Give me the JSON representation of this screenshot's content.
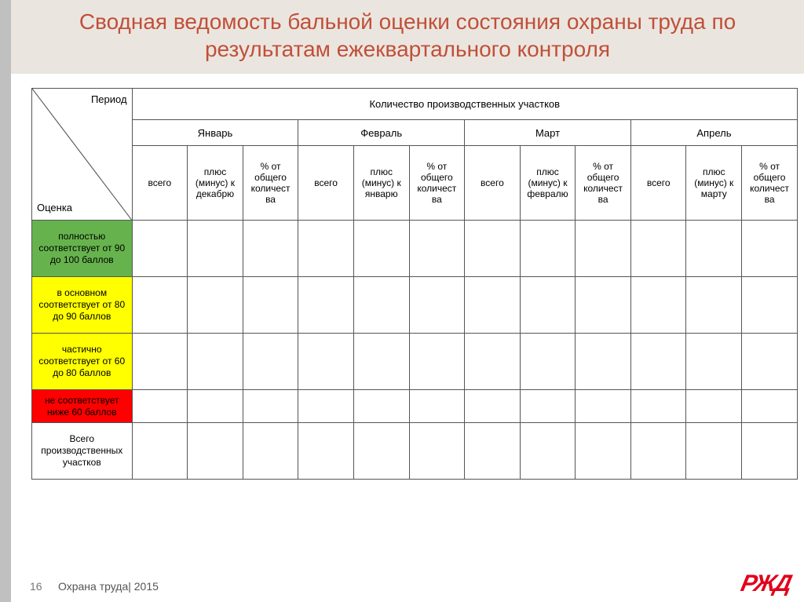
{
  "colors": {
    "title_bg": "#eae6df",
    "title_text": "#c14f3a",
    "side_stripe": "#c0c0c0",
    "border": "#555555",
    "row_full": "#66b34d",
    "row_mostly": "#ffff00",
    "row_partial": "#ffff00",
    "row_noncomp": "#ff0000",
    "logo": "#e2001a",
    "footer_text": "#555555",
    "pagenum": "#777777"
  },
  "title": "Сводная ведомость бальной оценки состояния охраны труда по результатам ежеквартального контроля",
  "table": {
    "diag_top": "Период",
    "diag_bot": "Оценка",
    "super_header": "Количество производственных участков",
    "months": [
      "Январь",
      "Февраль",
      "Март",
      "Апрель"
    ],
    "sub_cols": {
      "c0": "всего",
      "c1_prefix": "плюс (минус) к ",
      "c1_refs": [
        "декабрю",
        "январю",
        "февралю",
        "марту"
      ],
      "c2": "% от общего количест ва"
    },
    "rows": [
      {
        "key": "full",
        "label": "полностью соответствует от 90 до 100 баллов",
        "bg": "#66b34d"
      },
      {
        "key": "mostly",
        "label": "в основном соответствует от 80 до 90 баллов",
        "bg": "#ffff00"
      },
      {
        "key": "partial",
        "label": "частично соответствует от 60 до 80 баллов",
        "bg": "#ffff00"
      },
      {
        "key": "noncomp",
        "label": "не соответствует ниже 60 баллов",
        "bg": "#ff0000"
      },
      {
        "key": "total",
        "label": "Всего производственных участков",
        "bg": "#ffffff"
      }
    ]
  },
  "footer": {
    "page": "16",
    "text": "Охрана труда| 2015",
    "logo": "РЖД"
  }
}
